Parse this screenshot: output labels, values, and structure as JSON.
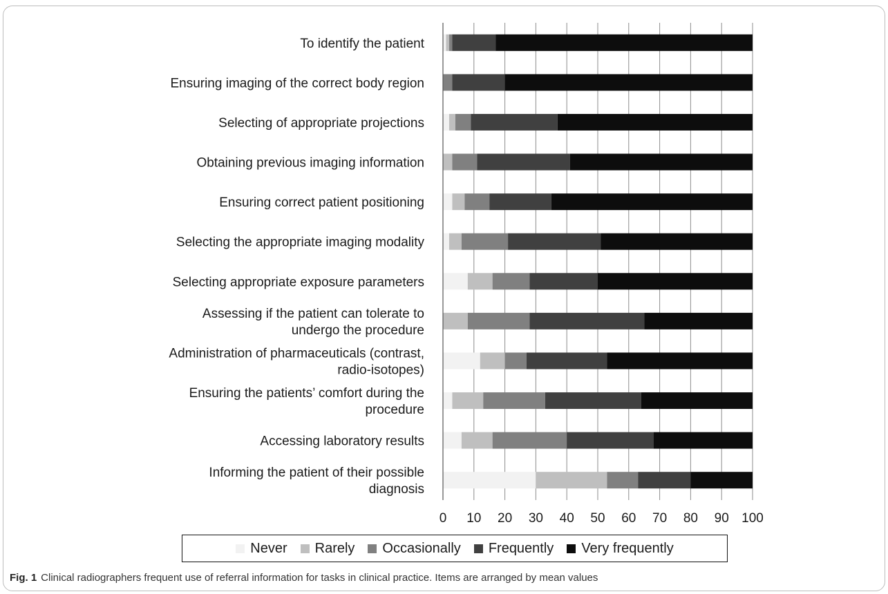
{
  "figure": {
    "caption_label": "Fig. 1",
    "caption_text": "Clinical radiographers frequent use of referral information for tasks in clinical practice. Items are arranged by mean values"
  },
  "chart_data": {
    "type": "bar",
    "orientation": "horizontal",
    "stacked": true,
    "categories": [
      [
        "To identify the patient"
      ],
      [
        "Ensuring imaging of the correct body region"
      ],
      [
        "Selecting of appropriate projections"
      ],
      [
        "Obtaining previous imaging information"
      ],
      [
        "Ensuring correct patient positioning"
      ],
      [
        "Selecting the appropriate imaging modality"
      ],
      [
        "Selecting appropriate exposure parameters"
      ],
      [
        "Assessing if the patient can tolerate to",
        "undergo the procedure"
      ],
      [
        "Administration of pharmaceuticals (contrast,",
        "radio-isotopes)"
      ],
      [
        "Ensuring the patients’ comfort during the",
        "procedure"
      ],
      [
        "Accessing laboratory results"
      ],
      [
        "Informing the patient of their possible",
        "diagnosis"
      ]
    ],
    "series": [
      {
        "name": "Never",
        "color": "#f2f2f2",
        "values": [
          1,
          0,
          2,
          0,
          3,
          2,
          8,
          0,
          12,
          3,
          6,
          30
        ]
      },
      {
        "name": "Rarely",
        "color": "#bfbfbf",
        "values": [
          1,
          0,
          2,
          3,
          4,
          4,
          8,
          8,
          8,
          10,
          10,
          23
        ]
      },
      {
        "name": "Occasionally",
        "color": "#808080",
        "values": [
          1,
          3,
          5,
          8,
          8,
          15,
          12,
          20,
          7,
          20,
          24,
          10
        ]
      },
      {
        "name": "Frequently",
        "color": "#404040",
        "values": [
          14,
          17,
          28,
          30,
          20,
          30,
          22,
          37,
          26,
          31,
          28,
          17
        ]
      },
      {
        "name": "Very frequently",
        "color": "#0d0d0d",
        "values": [
          83,
          80,
          63,
          59,
          65,
          49,
          50,
          35,
          47,
          36,
          32,
          20
        ]
      }
    ],
    "xlim": [
      0,
      100
    ],
    "xticks": [
      0,
      10,
      20,
      30,
      40,
      50,
      60,
      70,
      80,
      90,
      100
    ],
    "grid": true,
    "legend_position": "bottom"
  }
}
